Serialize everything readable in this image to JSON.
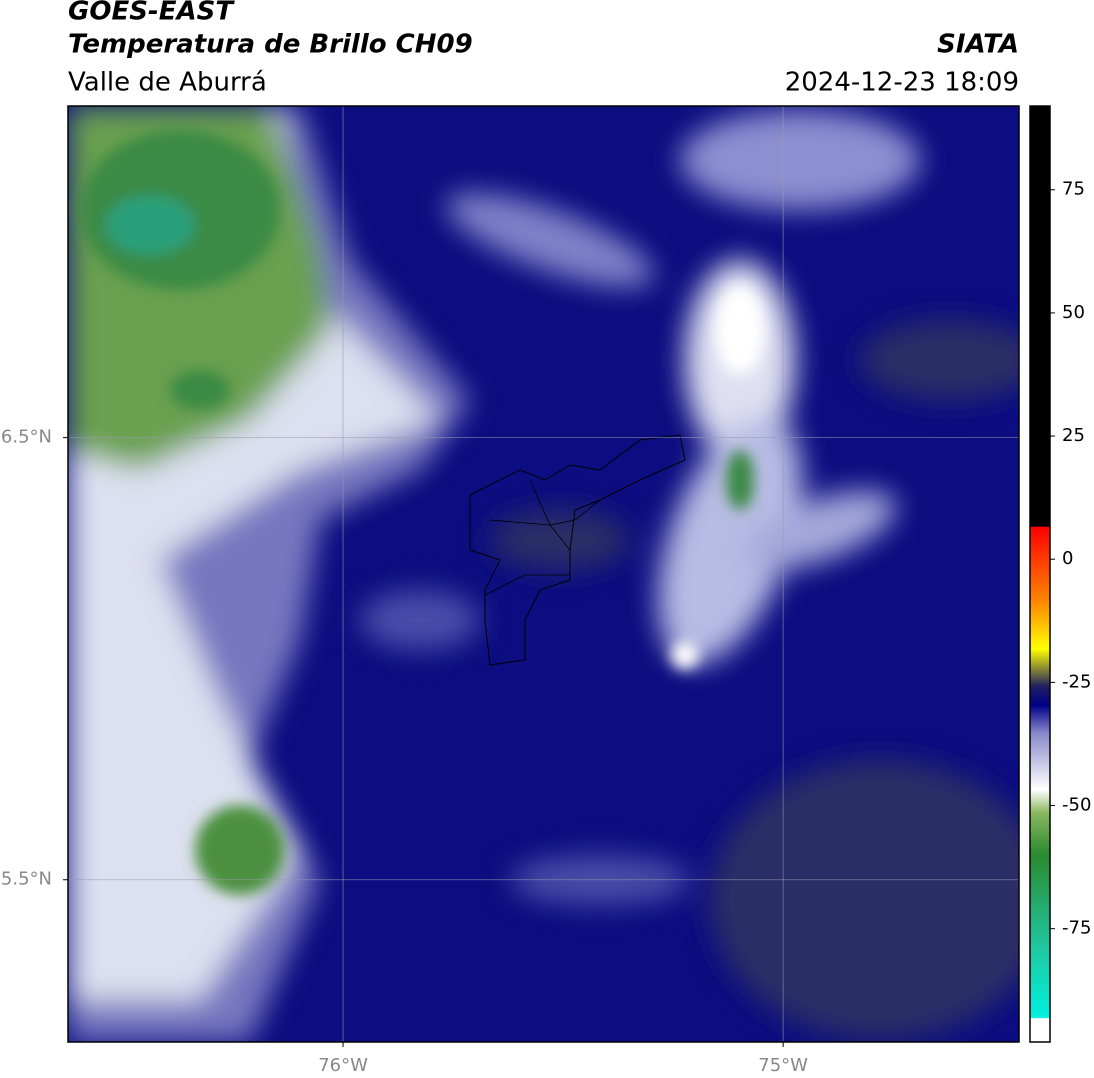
{
  "header": {
    "title": "GOES-EAST",
    "subtitle": "Temperatura de Brillo CH09",
    "region": "Valle de Aburrá",
    "source": "SIATA",
    "datetime": "2024-12-23 18:09"
  },
  "map": {
    "xlim": [
      -76.625,
      -74.464
    ],
    "ylim": [
      5.133,
      7.25
    ],
    "xticks": [
      {
        "value": -76,
        "label": "76°W"
      },
      {
        "value": -75,
        "label": "75°W"
      }
    ],
    "yticks": [
      {
        "value": 6.5,
        "label": "6.5°N"
      },
      {
        "value": 5.5,
        "label": "5.5°N"
      }
    ],
    "grid": true
  },
  "colorbar": {
    "lim": [
      -98,
      92
    ],
    "ticks": [
      75,
      50,
      25,
      0,
      -25,
      -50,
      -75
    ]
  }
}
